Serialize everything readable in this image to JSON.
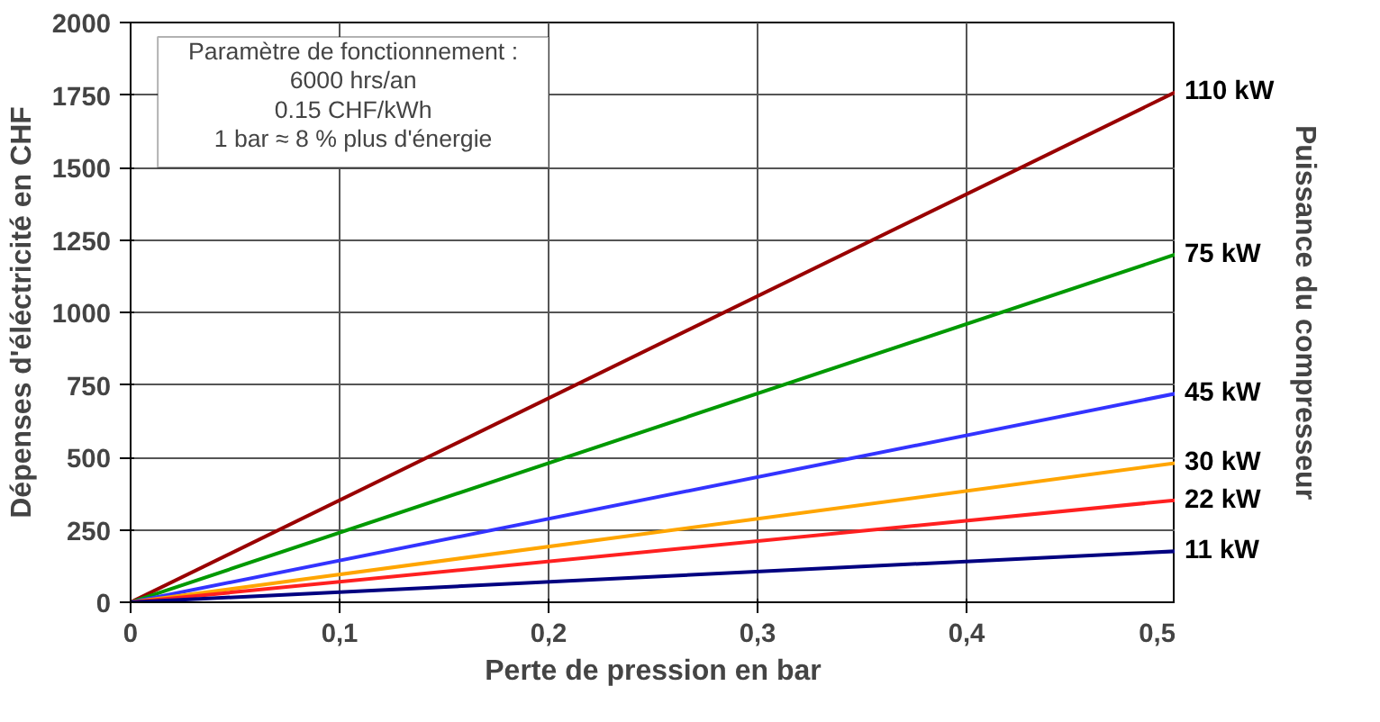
{
  "chart_data": {
    "type": "line",
    "xlabel": "Perte de pression en bar",
    "ylabel": "Dépenses d'éléctricité en CHF",
    "y2label": "Puissance du compresseur",
    "annotations": [
      "Paramètre de fonctionnement :",
      "6000 hrs/an",
      "0.15 CHF/kWh",
      "1 bar ≈ 8 % plus d'énergie"
    ],
    "x": [
      0,
      0.5
    ],
    "series": [
      {
        "name": "110 kW",
        "color": "#990000",
        "values": [
          0,
          1760
        ]
      },
      {
        "name": "75 kW",
        "color": "#009900",
        "values": [
          0,
          1200
        ]
      },
      {
        "name": "45 kW",
        "color": "#3333ff",
        "values": [
          0,
          720
        ]
      },
      {
        "name": "30 kW",
        "color": "#ffa500",
        "values": [
          0,
          480
        ]
      },
      {
        "name": "22 kW",
        "color": "#ff2020",
        "values": [
          0,
          352
        ]
      },
      {
        "name": "11 kW",
        "color": "#000080",
        "values": [
          0,
          176
        ]
      }
    ],
    "xlim": [
      0,
      0.5
    ],
    "ylim": [
      0,
      2000
    ],
    "xticks": [
      0,
      {
        "value": 0.1,
        "label": "0,1"
      },
      {
        "value": 0.2,
        "label": "0,2"
      },
      {
        "value": 0.3,
        "label": "0,3"
      },
      {
        "value": 0.4,
        "label": "0,4"
      },
      {
        "value": 0.5,
        "label": "0,5"
      }
    ],
    "yticks": [
      0,
      250,
      500,
      750,
      1000,
      1250,
      1500,
      1750,
      2000
    ],
    "grid": true,
    "marker": "none",
    "line_style": "solid"
  }
}
